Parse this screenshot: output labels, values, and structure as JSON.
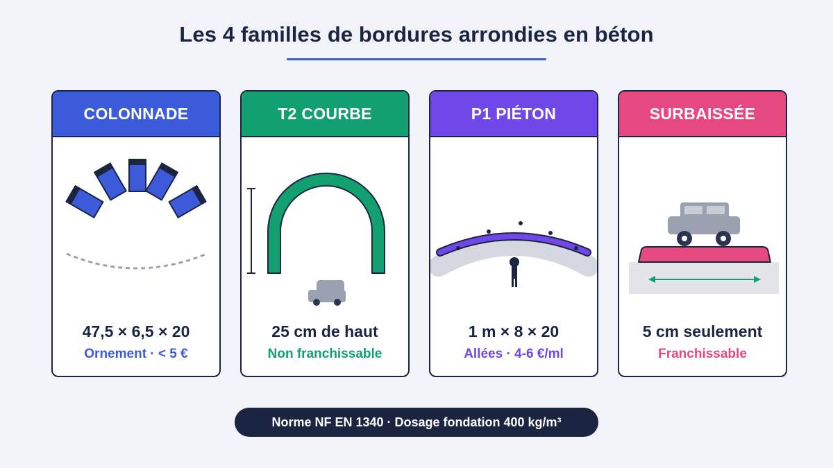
{
  "title": "Les 4 familles de bordures arrondies en béton",
  "cards": [
    {
      "heading": "COLONNADE",
      "dimension": "47,5 × 6,5 × 20",
      "subtitle": "Ornement · < 5 €",
      "color": "#3b5bdb",
      "illustration": "colonnade-blocks-arc"
    },
    {
      "heading": "T2 COURBE",
      "dimension": "25 cm de haut",
      "subtitle": "Non franchissable",
      "color": "#12a071",
      "illustration": "tall-arch-with-car"
    },
    {
      "heading": "P1 PIÉTON",
      "dimension": "1 m × 8 × 20",
      "subtitle": "Allées · 4-6 €/ml",
      "color": "#7048e8",
      "illustration": "curved-path-with-pedestrian"
    },
    {
      "heading": "SURBAISSÉE",
      "dimension": "5 cm seulement",
      "subtitle": "Franchissable",
      "color": "#e64980",
      "illustration": "car-over-low-curb"
    }
  ],
  "footer": "Norme NF EN 1340 · Dosage fondation 400 kg/m³"
}
